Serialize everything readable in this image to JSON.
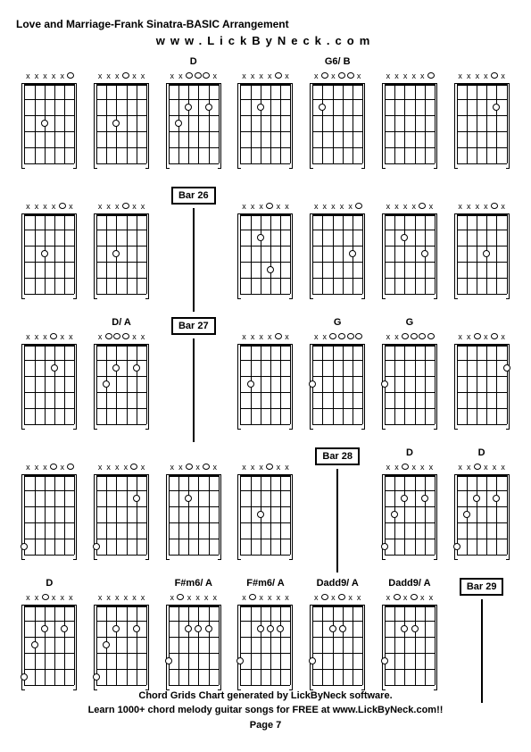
{
  "title": "Love and Marriage-Frank Sinatra-BASIC Arrangement",
  "url": "www.LickByNeck.com",
  "footer_line1": "Chord Grids Chart generated by LickByNeck software.",
  "footer_line2": "Learn 1000+ chord melody guitar songs for FREE at www.LickByNeck.com!!",
  "page_label": "Page 7",
  "colors": {
    "bg": "#ffffff",
    "fg": "#000000"
  },
  "layout": {
    "cols": 7,
    "rows": 5,
    "diagram_w": 56,
    "diagram_h": 90,
    "frets": 5,
    "strings": 6
  },
  "cells": [
    {
      "type": "chord",
      "label": "",
      "markers": "xxxxxo",
      "dots": [
        [
          3,
          3
        ]
      ]
    },
    {
      "type": "chord",
      "label": "",
      "markers": "xxxoxx",
      "dots": [
        [
          3,
          3
        ]
      ]
    },
    {
      "type": "chord",
      "label": "D",
      "markers": "xxooox",
      "dots": [
        [
          2,
          3
        ],
        [
          3,
          2
        ],
        [
          2,
          5
        ]
      ]
    },
    {
      "type": "chord",
      "label": "",
      "markers": "xxxxox",
      "dots": [
        [
          2,
          3
        ]
      ]
    },
    {
      "type": "chord",
      "label": "G6/ B",
      "markers": "xoxoox",
      "dots": [
        [
          2,
          2
        ]
      ]
    },
    {
      "type": "chord",
      "label": "",
      "markers": "xxxxxo",
      "dots": []
    },
    {
      "type": "chord",
      "label": "",
      "markers": "xxxxox",
      "dots": [
        [
          2,
          5
        ]
      ]
    },
    {
      "type": "chord",
      "label": "",
      "markers": "xxxxox",
      "dots": [
        [
          3,
          3
        ]
      ]
    },
    {
      "type": "chord",
      "label": "",
      "markers": "xxxoxx",
      "dots": [
        [
          3,
          3
        ]
      ]
    },
    {
      "type": "bar",
      "label": "Bar 26"
    },
    {
      "type": "chord",
      "label": "",
      "markers": "xxxoxx",
      "dots": [
        [
          2,
          3
        ],
        [
          4,
          4
        ]
      ]
    },
    {
      "type": "chord",
      "label": "",
      "markers": "xxxxxo",
      "dots": [
        [
          3,
          5
        ]
      ]
    },
    {
      "type": "chord",
      "label": "",
      "markers": "xxxxox",
      "dots": [
        [
          2,
          3
        ],
        [
          3,
          5
        ]
      ]
    },
    {
      "type": "chord",
      "label": "",
      "markers": "xxxxox",
      "dots": [
        [
          3,
          4
        ]
      ]
    },
    {
      "type": "chord",
      "label": "",
      "markers": "xxxoxx",
      "dots": [
        [
          2,
          4
        ]
      ]
    },
    {
      "type": "chord",
      "label": "D/ A",
      "markers": "xoooxx",
      "dots": [
        [
          2,
          3
        ],
        [
          3,
          2
        ],
        [
          2,
          5
        ]
      ]
    },
    {
      "type": "bar",
      "label": "Bar 27"
    },
    {
      "type": "chord",
      "label": "",
      "markers": "xxxxox",
      "dots": [
        [
          3,
          2
        ]
      ]
    },
    {
      "type": "chord",
      "label": "G",
      "markers": "xxoooo",
      "dots": [
        [
          3,
          1
        ]
      ]
    },
    {
      "type": "chord",
      "label": "G",
      "markers": "xxoooo",
      "dots": [
        [
          3,
          1
        ]
      ]
    },
    {
      "type": "chord",
      "label": "",
      "markers": "xxoxox",
      "dots": [
        [
          2,
          6
        ]
      ]
    },
    {
      "type": "chord",
      "label": "",
      "markers": "xxxoxo",
      "dots": [
        [
          5,
          1
        ]
      ]
    },
    {
      "type": "chord",
      "label": "",
      "markers": "xxxxox",
      "dots": [
        [
          2,
          5
        ],
        [
          5,
          1
        ]
      ]
    },
    {
      "type": "chord",
      "label": "",
      "markers": "xxoxox",
      "dots": [
        [
          2,
          3
        ]
      ]
    },
    {
      "type": "chord",
      "label": "",
      "markers": "xxxoxx",
      "dots": [
        [
          3,
          3
        ]
      ]
    },
    {
      "type": "bar",
      "label": "Bar 28"
    },
    {
      "type": "chord",
      "label": "D",
      "markers": "xxoxxx",
      "dots": [
        [
          2,
          3
        ],
        [
          3,
          2
        ],
        [
          2,
          5
        ],
        [
          5,
          1
        ]
      ]
    },
    {
      "type": "chord",
      "label": "D",
      "markers": "xxoxxx",
      "dots": [
        [
          2,
          3
        ],
        [
          3,
          2
        ],
        [
          2,
          5
        ],
        [
          5,
          1
        ]
      ]
    },
    {
      "type": "chord",
      "label": "D",
      "markers": "xxoxxx",
      "dots": [
        [
          2,
          3
        ],
        [
          3,
          2
        ],
        [
          2,
          5
        ],
        [
          5,
          1
        ]
      ]
    },
    {
      "type": "chord",
      "label": "",
      "markers": "xxxxxx",
      "dots": [
        [
          2,
          3
        ],
        [
          3,
          2
        ],
        [
          2,
          5
        ],
        [
          5,
          1
        ]
      ]
    },
    {
      "type": "chord",
      "label": "F#m6/ A",
      "markers": "xoxxxx",
      "dots": [
        [
          2,
          3
        ],
        [
          2,
          4
        ],
        [
          2,
          5
        ],
        [
          4,
          1
        ]
      ]
    },
    {
      "type": "chord",
      "label": "F#m6/ A",
      "markers": "xoxxxx",
      "dots": [
        [
          2,
          3
        ],
        [
          2,
          4
        ],
        [
          2,
          5
        ],
        [
          4,
          1
        ]
      ]
    },
    {
      "type": "chord",
      "label": "Dadd9/ A",
      "markers": "xoxoxx",
      "dots": [
        [
          2,
          3
        ],
        [
          2,
          4
        ],
        [
          4,
          1
        ]
      ]
    },
    {
      "type": "chord",
      "label": "Dadd9/ A",
      "markers": "xoxoxx",
      "dots": [
        [
          2,
          3
        ],
        [
          2,
          4
        ],
        [
          4,
          1
        ]
      ]
    },
    {
      "type": "bar",
      "label": "Bar 29"
    }
  ]
}
